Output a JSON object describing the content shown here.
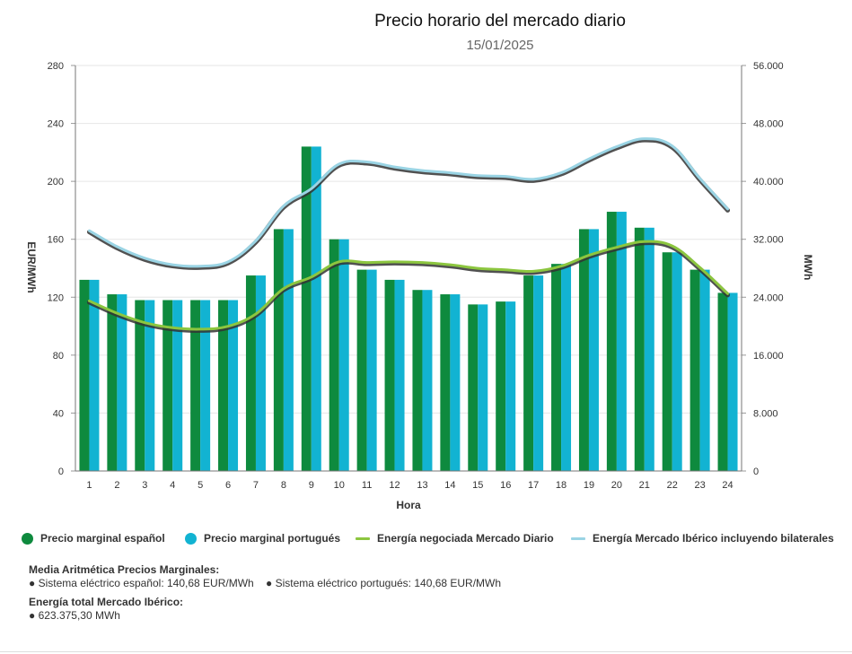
{
  "chart_data": {
    "type": "bar",
    "title": "Precio horario del mercado diario",
    "subtitle": "15/01/2025",
    "xlabel": "Hora",
    "ylabel_left": "EUR/MWh",
    "ylabel_right": "MWh",
    "ylim_left": [
      0,
      280
    ],
    "ylim_right": [
      0,
      56000
    ],
    "yticks_left": [
      "0",
      "40",
      "80",
      "120",
      "160",
      "200",
      "240",
      "280"
    ],
    "yticks_right": [
      "0",
      "8.000",
      "16.000",
      "24.000",
      "32.000",
      "40.000",
      "48.000",
      "56.000"
    ],
    "categories": [
      "1",
      "2",
      "3",
      "4",
      "5",
      "6",
      "7",
      "8",
      "9",
      "10",
      "11",
      "12",
      "13",
      "14",
      "15",
      "16",
      "17",
      "18",
      "19",
      "20",
      "21",
      "22",
      "23",
      "24"
    ],
    "series": [
      {
        "name": "Precio marginal español",
        "kind": "bar",
        "axis": "left",
        "color": "#0e8a3e",
        "values": [
          132,
          122,
          118,
          118,
          118,
          118,
          135,
          167,
          224,
          160,
          139,
          132,
          125,
          122,
          115,
          117,
          135,
          143,
          167,
          179,
          168,
          151,
          139,
          123
        ]
      },
      {
        "name": "Precio marginal portugués",
        "kind": "bar",
        "axis": "left",
        "color": "#12b3d2",
        "values": [
          132,
          122,
          118,
          118,
          118,
          118,
          135,
          167,
          224,
          160,
          139,
          132,
          125,
          122,
          115,
          117,
          135,
          143,
          167,
          179,
          168,
          151,
          139,
          123
        ]
      },
      {
        "name": "Energía negociada Mercado Diario",
        "kind": "line",
        "axis": "right",
        "color": "#8cc63f",
        "values": [
          23300,
          21600,
          20300,
          19600,
          19400,
          19800,
          21500,
          25000,
          26600,
          28700,
          28600,
          28700,
          28600,
          28300,
          27800,
          27600,
          27400,
          28100,
          29600,
          30700,
          31500,
          30900,
          27900,
          24300
        ]
      },
      {
        "name": "Energía Mercado Ibérico incluyendo bilaterales",
        "kind": "line",
        "axis": "right",
        "color": "#9ad4e4",
        "values": [
          33000,
          30800,
          29200,
          28300,
          28100,
          28700,
          31600,
          36400,
          38800,
          42200,
          42500,
          41800,
          41300,
          41000,
          40600,
          40500,
          40100,
          41000,
          42900,
          44600,
          45700,
          44700,
          40200,
          36000
        ]
      }
    ],
    "legend_position": "bottom",
    "grid": true
  },
  "legend": {
    "items": [
      {
        "label": "Precio marginal español",
        "color": "#0e8a3e",
        "shape": "dot"
      },
      {
        "label": "Precio marginal portugués",
        "color": "#12b3d2",
        "shape": "dot"
      },
      {
        "label": "Energía negociada Mercado Diario",
        "color": "#8cc63f",
        "shape": "line"
      },
      {
        "label": "Energía Mercado Ibérico incluyendo bilaterales",
        "color": "#9ad4e4",
        "shape": "line"
      }
    ]
  },
  "stats": {
    "avg_heading": "Media Aritmética Precios Marginales:",
    "avg_es": "● Sistema eléctrico español: 140,68 EUR/MWh",
    "avg_pt": "● Sistema eléctrico portugués: 140,68 EUR/MWh",
    "energy_heading": "Energía total Mercado Ibérico:",
    "energy_total": "● 623.375,30 MWh"
  }
}
